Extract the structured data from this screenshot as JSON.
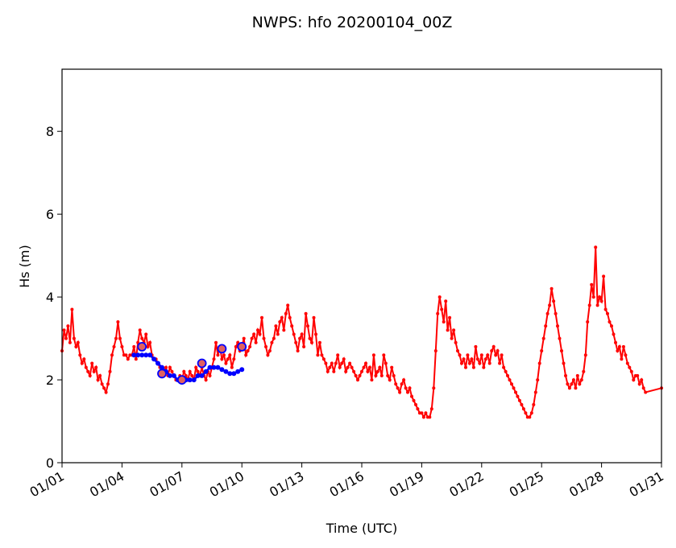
{
  "chart_data": {
    "type": "line",
    "title": "NWPS: hfo 20200104_00Z",
    "xlabel": "Time (UTC)",
    "ylabel": "Hs (m)",
    "xlim": [
      0,
      30
    ],
    "ylim": [
      0,
      9.5
    ],
    "x_ticks": [
      {
        "value": 0,
        "label": "01/01"
      },
      {
        "value": 3,
        "label": "01/04"
      },
      {
        "value": 6,
        "label": "01/07"
      },
      {
        "value": 9,
        "label": "01/10"
      },
      {
        "value": 12,
        "label": "01/13"
      },
      {
        "value": 15,
        "label": "01/16"
      },
      {
        "value": 18,
        "label": "01/19"
      },
      {
        "value": 21,
        "label": "01/22"
      },
      {
        "value": 24,
        "label": "01/25"
      },
      {
        "value": 27,
        "label": "01/28"
      },
      {
        "value": 30,
        "label": "01/31"
      }
    ],
    "y_ticks": [
      {
        "value": 0,
        "label": "0"
      },
      {
        "value": 2,
        "label": "2"
      },
      {
        "value": 4,
        "label": "4"
      },
      {
        "value": 6,
        "label": "6"
      },
      {
        "value": 8,
        "label": "8"
      }
    ],
    "grid": false,
    "series": [
      {
        "color": "#ff0000",
        "marker": "dot",
        "x": [
          0.0,
          0.1,
          0.2,
          0.3,
          0.4,
          0.5,
          0.6,
          0.7,
          0.8,
          0.9,
          1.0,
          1.1,
          1.2,
          1.3,
          1.4,
          1.5,
          1.6,
          1.7,
          1.8,
          1.9,
          2.0,
          2.1,
          2.2,
          2.3,
          2.4,
          2.5,
          2.6,
          2.7,
          2.8,
          2.9,
          3.0,
          3.1,
          3.2,
          3.3,
          3.4,
          3.5,
          3.6,
          3.7,
          3.8,
          3.9,
          4.0,
          4.1,
          4.2,
          4.3,
          4.4,
          4.5,
          4.6,
          4.7,
          4.8,
          4.9,
          5.0,
          5.1,
          5.2,
          5.3,
          5.4,
          5.5,
          5.6,
          5.7,
          5.8,
          5.9,
          6.0,
          6.1,
          6.2,
          6.3,
          6.4,
          6.5,
          6.6,
          6.7,
          6.8,
          6.9,
          7.0,
          7.1,
          7.2,
          7.3,
          7.4,
          7.5,
          7.6,
          7.7,
          7.8,
          7.9,
          8.0,
          8.1,
          8.2,
          8.3,
          8.4,
          8.5,
          8.6,
          8.7,
          8.8,
          8.9,
          9.0,
          9.1,
          9.2,
          9.3,
          9.4,
          9.5,
          9.6,
          9.7,
          9.8,
          9.9,
          10.0,
          10.1,
          10.2,
          10.3,
          10.4,
          10.5,
          10.6,
          10.7,
          10.8,
          10.9,
          11.0,
          11.1,
          11.2,
          11.3,
          11.4,
          11.5,
          11.6,
          11.7,
          11.8,
          11.9,
          12.0,
          12.1,
          12.2,
          12.3,
          12.4,
          12.5,
          12.6,
          12.7,
          12.8,
          12.9,
          13.0,
          13.1,
          13.2,
          13.3,
          13.4,
          13.5,
          13.6,
          13.7,
          13.8,
          13.9,
          14.0,
          14.1,
          14.2,
          14.3,
          14.4,
          14.5,
          14.6,
          14.7,
          14.8,
          14.9,
          15.0,
          15.1,
          15.2,
          15.3,
          15.4,
          15.5,
          15.6,
          15.7,
          15.8,
          15.9,
          16.0,
          16.1,
          16.2,
          16.3,
          16.4,
          16.5,
          16.6,
          16.7,
          16.8,
          16.9,
          17.0,
          17.1,
          17.2,
          17.3,
          17.4,
          17.5,
          17.6,
          17.7,
          17.8,
          17.9,
          18.0,
          18.1,
          18.2,
          18.3,
          18.4,
          18.5,
          18.6,
          18.7,
          18.8,
          18.9,
          19.0,
          19.1,
          19.2,
          19.3,
          19.4,
          19.5,
          19.6,
          19.7,
          19.8,
          19.9,
          20.0,
          20.1,
          20.2,
          20.3,
          20.4,
          20.5,
          20.6,
          20.7,
          20.8,
          20.9,
          21.0,
          21.1,
          21.2,
          21.3,
          21.4,
          21.5,
          21.6,
          21.7,
          21.8,
          21.9,
          22.0,
          22.1,
          22.2,
          22.3,
          22.4,
          22.5,
          22.6,
          22.7,
          22.8,
          22.9,
          23.0,
          23.1,
          23.2,
          23.3,
          23.4,
          23.5,
          23.6,
          23.7,
          23.8,
          23.9,
          24.0,
          24.1,
          24.2,
          24.3,
          24.4,
          24.5,
          24.6,
          24.7,
          24.8,
          24.9,
          25.0,
          25.1,
          25.2,
          25.3,
          25.4,
          25.5,
          25.6,
          25.7,
          25.8,
          25.9,
          26.0,
          26.1,
          26.2,
          26.3,
          26.4,
          26.5,
          26.6,
          26.7,
          26.8,
          26.9,
          27.0,
          27.1,
          27.2,
          27.3,
          27.4,
          27.5,
          27.6,
          27.7,
          27.8,
          27.9,
          28.0,
          28.1,
          28.2,
          28.3,
          28.4,
          28.5,
          28.6,
          28.7,
          28.8,
          28.9,
          29.0,
          29.1,
          29.2,
          30.0
        ],
        "y": [
          2.7,
          3.2,
          3.0,
          3.3,
          2.9,
          3.7,
          3.0,
          2.8,
          2.9,
          2.6,
          2.4,
          2.5,
          2.3,
          2.2,
          2.1,
          2.4,
          2.2,
          2.3,
          2.0,
          2.1,
          1.9,
          1.8,
          1.7,
          1.9,
          2.2,
          2.6,
          2.8,
          3.0,
          3.4,
          3.0,
          2.8,
          2.6,
          2.6,
          2.5,
          2.6,
          2.6,
          2.8,
          2.5,
          2.9,
          3.2,
          3.0,
          2.9,
          3.1,
          2.8,
          2.9,
          2.6,
          2.5,
          2.5,
          2.4,
          2.3,
          2.3,
          2.2,
          2.3,
          2.1,
          2.3,
          2.2,
          2.1,
          2.0,
          2.0,
          2.1,
          2.0,
          2.2,
          2.1,
          2.0,
          2.2,
          2.1,
          2.0,
          2.3,
          2.2,
          2.1,
          2.3,
          2.1,
          2.0,
          2.2,
          2.1,
          2.3,
          2.5,
          2.9,
          2.6,
          2.8,
          2.5,
          2.6,
          2.4,
          2.5,
          2.6,
          2.3,
          2.5,
          2.8,
          2.9,
          2.7,
          2.8,
          3.0,
          2.6,
          2.7,
          2.8,
          3.0,
          3.1,
          2.9,
          3.2,
          3.1,
          3.5,
          3.0,
          2.8,
          2.6,
          2.7,
          2.9,
          3.0,
          3.3,
          3.1,
          3.4,
          3.5,
          3.2,
          3.6,
          3.8,
          3.5,
          3.3,
          3.1,
          2.9,
          2.7,
          3.0,
          3.1,
          2.8,
          3.6,
          3.3,
          3.0,
          2.9,
          3.5,
          3.1,
          2.6,
          2.9,
          2.6,
          2.5,
          2.4,
          2.2,
          2.3,
          2.4,
          2.2,
          2.4,
          2.6,
          2.3,
          2.4,
          2.5,
          2.2,
          2.3,
          2.4,
          2.3,
          2.2,
          2.1,
          2.0,
          2.1,
          2.2,
          2.3,
          2.4,
          2.2,
          2.3,
          2.0,
          2.6,
          2.1,
          2.2,
          2.3,
          2.1,
          2.6,
          2.4,
          2.1,
          2.0,
          2.3,
          2.1,
          1.9,
          1.8,
          1.7,
          1.9,
          2.0,
          1.8,
          1.7,
          1.8,
          1.6,
          1.5,
          1.4,
          1.3,
          1.2,
          1.2,
          1.1,
          1.2,
          1.1,
          1.1,
          1.3,
          1.8,
          2.7,
          3.6,
          4.0,
          3.7,
          3.4,
          3.9,
          3.2,
          3.5,
          3.0,
          3.2,
          2.9,
          2.7,
          2.6,
          2.4,
          2.5,
          2.3,
          2.6,
          2.4,
          2.5,
          2.3,
          2.8,
          2.5,
          2.4,
          2.6,
          2.3,
          2.5,
          2.6,
          2.4,
          2.7,
          2.8,
          2.6,
          2.7,
          2.4,
          2.6,
          2.3,
          2.2,
          2.1,
          2.0,
          1.9,
          1.8,
          1.7,
          1.6,
          1.5,
          1.4,
          1.3,
          1.2,
          1.1,
          1.1,
          1.2,
          1.4,
          1.7,
          2.0,
          2.4,
          2.7,
          3.0,
          3.3,
          3.6,
          3.8,
          4.2,
          3.9,
          3.6,
          3.3,
          3.0,
          2.7,
          2.4,
          2.1,
          1.9,
          1.8,
          1.9,
          2.0,
          1.8,
          2.1,
          1.9,
          2.0,
          2.2,
          2.6,
          3.4,
          3.8,
          4.3,
          4.0,
          5.2,
          3.8,
          4.0,
          3.9,
          4.5,
          3.7,
          3.6,
          3.4,
          3.3,
          3.1,
          2.9,
          2.7,
          2.8,
          2.5,
          2.8,
          2.6,
          2.4,
          2.3,
          2.2,
          2.0,
          2.1,
          2.1,
          1.9,
          2.0,
          1.8,
          1.7,
          1.8
        ]
      },
      {
        "color": "#0000ff",
        "marker": "dot",
        "x": [
          3.6,
          3.8,
          4.0,
          4.2,
          4.4,
          4.6,
          4.8,
          5.0,
          5.2,
          5.4,
          5.6,
          5.8,
          6.0,
          6.2,
          6.4,
          6.6,
          6.8,
          7.0,
          7.2,
          7.4,
          7.6,
          7.8,
          8.0,
          8.2,
          8.4,
          8.6,
          8.8,
          9.0
        ],
        "y": [
          2.6,
          2.6,
          2.6,
          2.6,
          2.6,
          2.5,
          2.4,
          2.3,
          2.2,
          2.1,
          2.1,
          2.0,
          2.0,
          2.0,
          2.0,
          2.0,
          2.1,
          2.1,
          2.2,
          2.3,
          2.3,
          2.3,
          2.25,
          2.2,
          2.15,
          2.15,
          2.2,
          2.25
        ]
      }
    ],
    "observations": {
      "marker_color": "#0000ff",
      "marker_fill": "#e06060",
      "x": [
        4.0,
        5.0,
        6.0,
        7.0,
        8.0,
        9.0
      ],
      "y": [
        2.8,
        2.15,
        2.0,
        2.4,
        2.75,
        2.8
      ]
    }
  }
}
